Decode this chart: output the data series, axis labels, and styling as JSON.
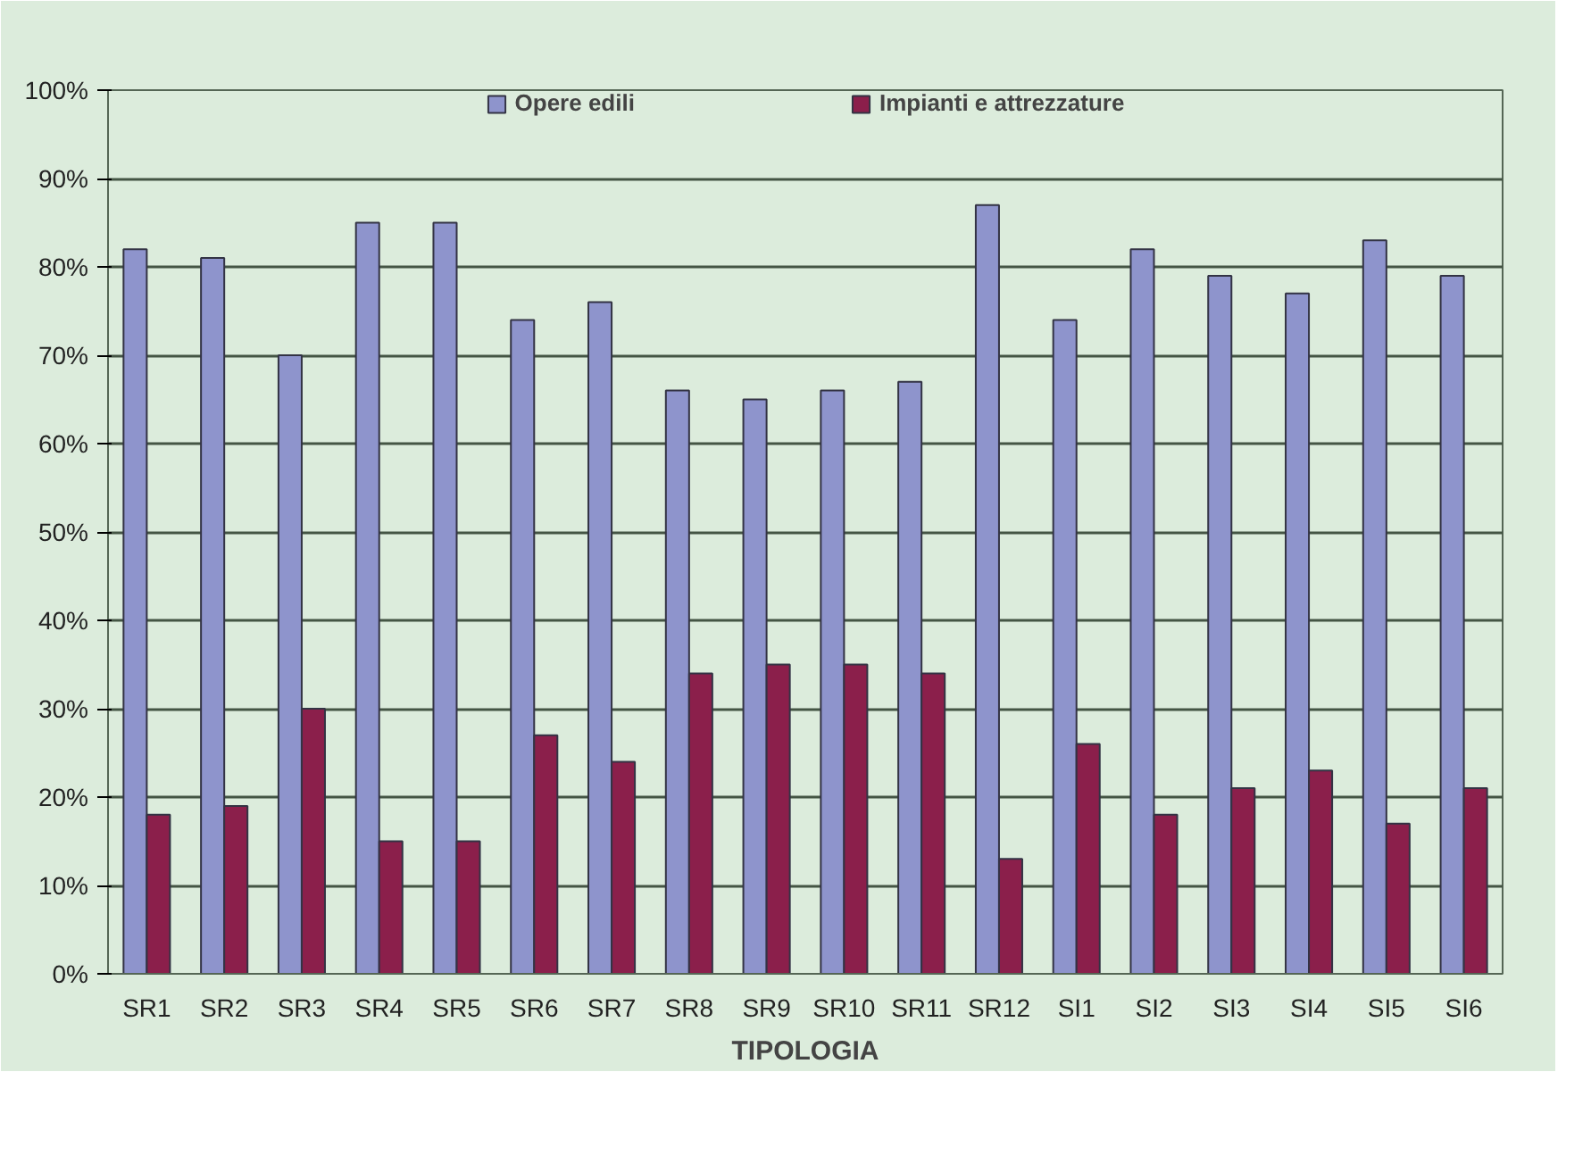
{
  "chart_data": {
    "type": "bar",
    "xlabel": "TIPOLOGIA",
    "categories": [
      "SR1",
      "SR2",
      "SR3",
      "SR4",
      "SR5",
      "SR6",
      "SR7",
      "SR8",
      "SR9",
      "SR10",
      "SR11",
      "SR12",
      "SI1",
      "SI2",
      "SI3",
      "SI4",
      "SI5",
      "SI6"
    ],
    "series": [
      {
        "name": "Opere edili",
        "color": "#8e94cc",
        "values": [
          82,
          81,
          70,
          85,
          85,
          74,
          76,
          66,
          65,
          66,
          67,
          87,
          74,
          82,
          79,
          77,
          83,
          79
        ]
      },
      {
        "name": "Impianti e attrezzature",
        "color": "#8b1f4b",
        "values": [
          18,
          19,
          30,
          15,
          15,
          27,
          24,
          34,
          35,
          35,
          34,
          13,
          26,
          18,
          21,
          23,
          17,
          21
        ]
      }
    ],
    "ylim": [
      0,
      100
    ],
    "yticks": [
      {
        "value": 0,
        "label": "0%"
      },
      {
        "value": 10,
        "label": "10%"
      },
      {
        "value": 20,
        "label": "20%"
      },
      {
        "value": 30,
        "label": "30%"
      },
      {
        "value": 40,
        "label": "40%"
      },
      {
        "value": 50,
        "label": "50%"
      },
      {
        "value": 60,
        "label": "60%"
      },
      {
        "value": 70,
        "label": "70%"
      },
      {
        "value": 80,
        "label": "80%"
      },
      {
        "value": 90,
        "label": "90%"
      },
      {
        "value": 100,
        "label": "100%"
      }
    ],
    "grid": "y",
    "legend": "top"
  }
}
